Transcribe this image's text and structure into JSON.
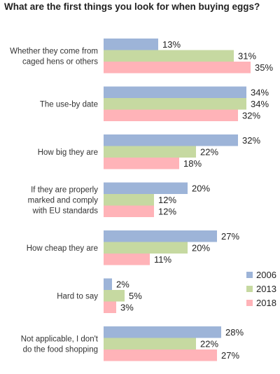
{
  "chart_data": {
    "type": "bar",
    "orientation": "horizontal",
    "title": "What are the first things you look for when buying eggs?",
    "xlabel": "",
    "ylabel": "",
    "xlim": [
      0,
      35
    ],
    "grid": false,
    "legend_position": "bottom-right",
    "value_suffix": "%",
    "categories": [
      [
        "Whether they come from",
        "caged hens or others"
      ],
      [
        "The use-by date"
      ],
      [
        "How big they are"
      ],
      [
        "If they are properly",
        "marked and comply",
        "with EU standards"
      ],
      [
        "How cheap they are"
      ],
      [
        "Hard to say"
      ],
      [
        "Not applicable, I don't",
        "do the food shopping"
      ]
    ],
    "series": [
      {
        "name": "2006",
        "color": "#9db4d8",
        "values": [
          13,
          34,
          32,
          20,
          27,
          2,
          28
        ]
      },
      {
        "name": "2013",
        "color": "#c6d9a1",
        "values": [
          31,
          34,
          22,
          12,
          20,
          5,
          22
        ]
      },
      {
        "name": "2018",
        "color": "#ffb3b8",
        "values": [
          35,
          32,
          18,
          12,
          11,
          3,
          27
        ]
      }
    ]
  }
}
